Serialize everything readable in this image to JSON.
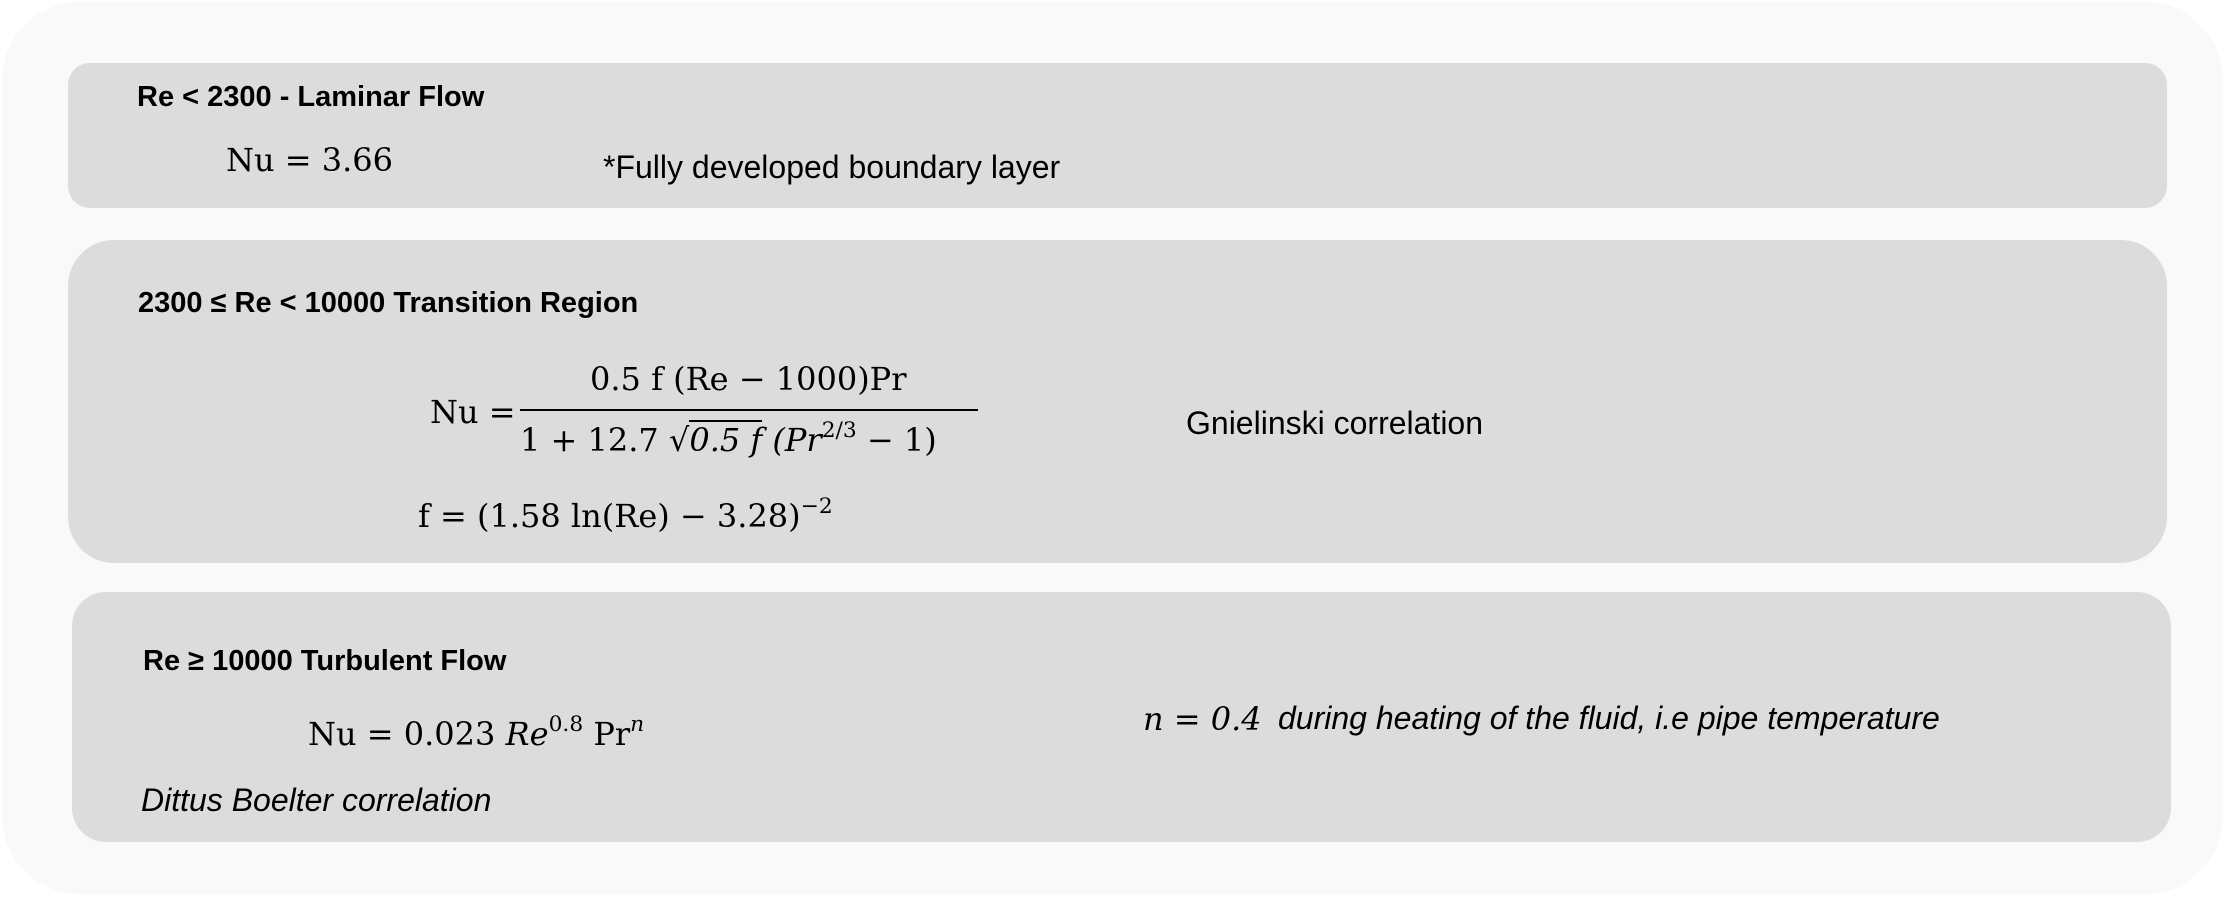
{
  "laminar": {
    "heading": "Re < 2300 - Laminar Flow",
    "equation": "Nu = 3.66",
    "note": "*Fully developed boundary layer"
  },
  "transition": {
    "heading": "2300  ≤ Re < 10000   Transition Region",
    "nu_lhs": "Nu =",
    "numerator": "0.5 f  (Re − 1000)Pr",
    "den_prefix": "1 + 12.7 ",
    "den_sqrt_symbol": "√",
    "den_sqrt_body": "0.5 f",
    "den_paren_open": "  (Pr",
    "den_exponent": "2/3",
    "den_paren_close": "  − 1)",
    "label": "Gnielinski correlation",
    "f_equation": "f = (1.58 ln(Re) − 3.28)",
    "f_exponent": "−2"
  },
  "turbulent": {
    "heading": "Re ≥  10000  Turbulent Flow",
    "eq_prefix": "Nu = 0.023 ",
    "eq_re": "Re",
    "eq_re_exp": "0.8",
    "eq_pr": " Pr",
    "eq_pr_exp": "n",
    "caption": "Dittus Boelter correlation",
    "n_equation": "n = 0.4",
    "n_note": "during heating of the fluid, i.e pipe temperature"
  }
}
